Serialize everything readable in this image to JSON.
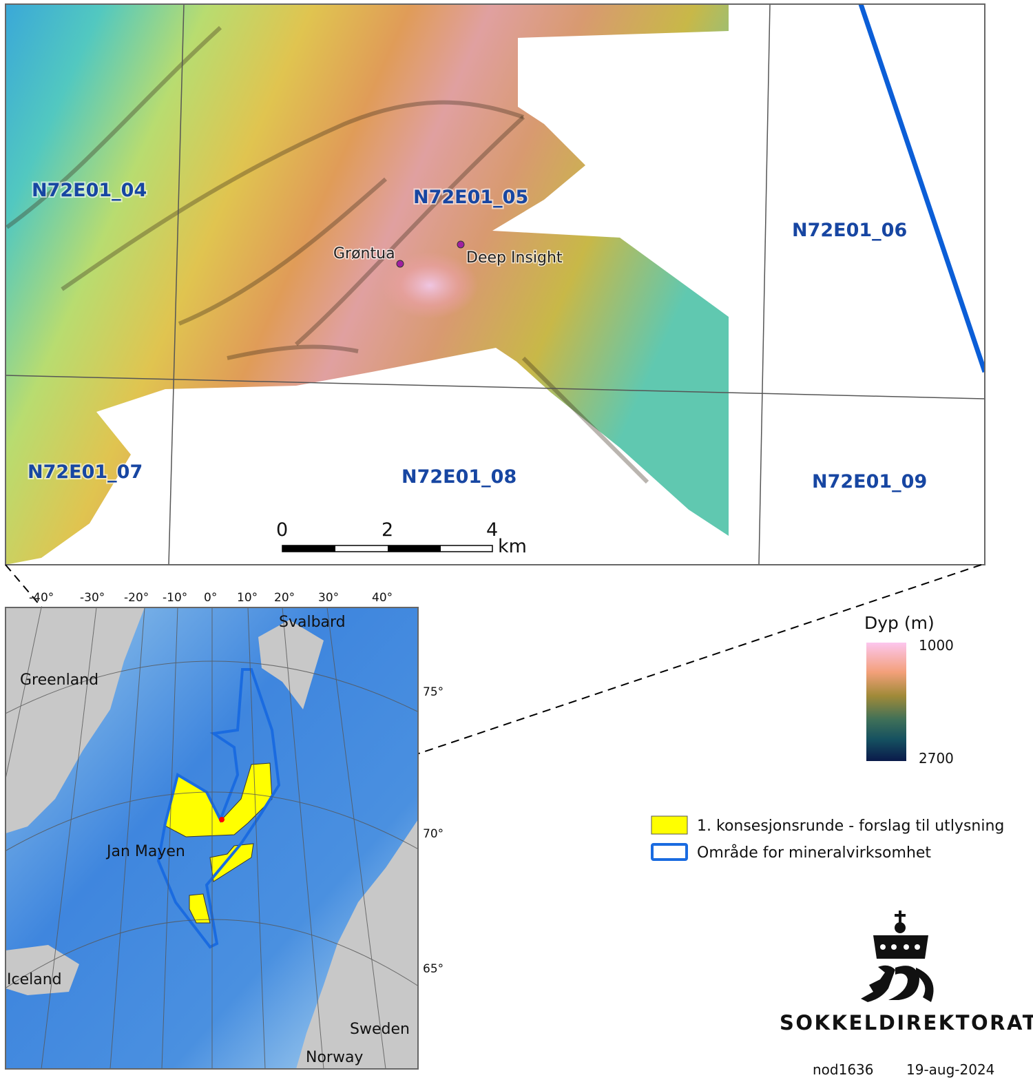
{
  "detail_map": {
    "tiles": [
      "N72E01_04",
      "N72E01_05",
      "N72E01_06",
      "N72E01_07",
      "N72E01_08",
      "N72E01_09"
    ],
    "sites": [
      {
        "name": "Grøntua",
        "color": "#a020a0"
      },
      {
        "name": "Deep Insight",
        "color": "#a020a0"
      }
    ],
    "scale_bar": {
      "ticks": [
        "0",
        "2",
        "4"
      ],
      "unit": "km"
    },
    "boundary_color": "#0b5ed7"
  },
  "depth_legend": {
    "title": "Dyp (m)",
    "min_label": "1000",
    "max_label": "2700",
    "colors": [
      "#fcc6ee",
      "#f3a07a",
      "#b88a3a",
      "#4c7656",
      "#155060",
      "#0a1a4a"
    ]
  },
  "overview_map": {
    "longitudes": [
      "-40°",
      "-30°",
      "-20°",
      "-10°",
      "0°",
      "10°",
      "20°",
      "30°",
      "40°"
    ],
    "latitudes": [
      "75°",
      "70°",
      "65°"
    ],
    "places": [
      "Svalbard",
      "Greenland",
      "Jan Mayen",
      "Iceland",
      "Sweden",
      "Norway"
    ],
    "colors": {
      "land": "#c8c8c8",
      "deep_sea": "#3f86de",
      "shallow_sea": "#bfe0f2",
      "license": "#ffff00",
      "mineral_area": "#1a6be0",
      "site": "#ff0000"
    }
  },
  "legend": {
    "items": [
      {
        "label": "1. konsesjonsrunde - forslag til utlysning",
        "type": "fill",
        "color": "#ffff00"
      },
      {
        "label": "Område for mineralvirksomhet",
        "type": "outline",
        "color": "#1a6be0"
      }
    ]
  },
  "logo": {
    "name": "SOKKELDIREKTORATET"
  },
  "footer": {
    "map_id": "nod1636",
    "date": "19-aug-2024"
  }
}
